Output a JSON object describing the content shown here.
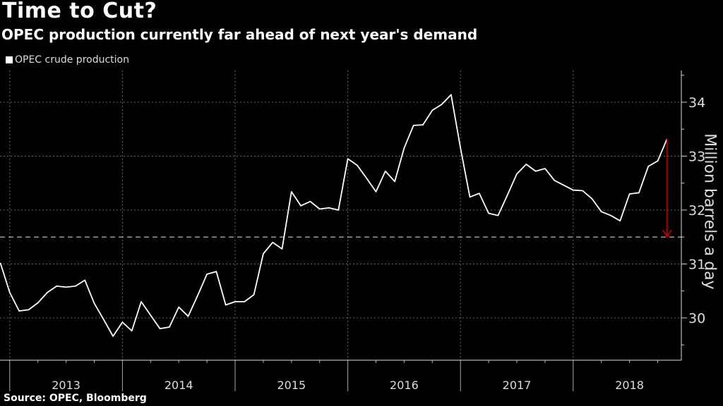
{
  "title": "Time to Cut?",
  "subtitle": "OPEC production currently far ahead of next year's demand",
  "source": "Source: OPEC, Bloomberg",
  "colors": {
    "background": "#000000",
    "line": "#ffffff",
    "arrow": "#c00000",
    "grid": "#555555"
  },
  "chart_data": {
    "type": "line",
    "title": "Time to Cut?",
    "subtitle": "OPEC production currently far ahead of next year's demand",
    "xlabel": "",
    "ylabel": "Million barrels a day",
    "ylim": [
      29.25,
      34.6
    ],
    "yticks": [
      30,
      31,
      32,
      33,
      34
    ],
    "ytick_labels": [
      "30",
      "31",
      "32",
      "33",
      "34"
    ],
    "y_axis_position": "right",
    "x_start": "2012-12",
    "x_unit": "month",
    "xtick_labels": [
      "2013",
      "2014",
      "2015",
      "2016",
      "2017",
      "2018"
    ],
    "grid": true,
    "legend": {
      "placement": "top-left",
      "entries": [
        "OPEC crude production"
      ]
    },
    "series": [
      {
        "name": "OPEC crude production",
        "values": [
          31.02,
          30.47,
          30.13,
          30.15,
          30.28,
          30.47,
          30.59,
          30.57,
          30.59,
          30.7,
          30.27,
          29.97,
          29.66,
          29.92,
          29.76,
          30.3,
          30.05,
          29.8,
          29.83,
          30.2,
          30.03,
          30.41,
          30.81,
          30.86,
          30.24,
          30.3,
          30.3,
          30.43,
          31.19,
          31.4,
          31.28,
          32.34,
          32.08,
          32.16,
          32.02,
          32.04,
          32.0,
          32.95,
          32.83,
          32.59,
          32.34,
          32.72,
          32.53,
          33.15,
          33.57,
          33.58,
          33.85,
          33.96,
          34.14,
          33.15,
          32.24,
          32.31,
          31.94,
          31.9,
          32.28,
          32.67,
          32.85,
          32.72,
          32.77,
          32.55,
          32.46,
          32.37,
          32.36,
          32.21,
          31.97,
          31.9,
          31.8,
          32.3,
          32.32,
          32.81,
          32.91,
          33.32
        ]
      }
    ],
    "reference_line": {
      "value": 31.5,
      "style": "dashed"
    },
    "annotation_arrow": {
      "from": 33.32,
      "to": 31.5,
      "at_index": 71
    }
  }
}
